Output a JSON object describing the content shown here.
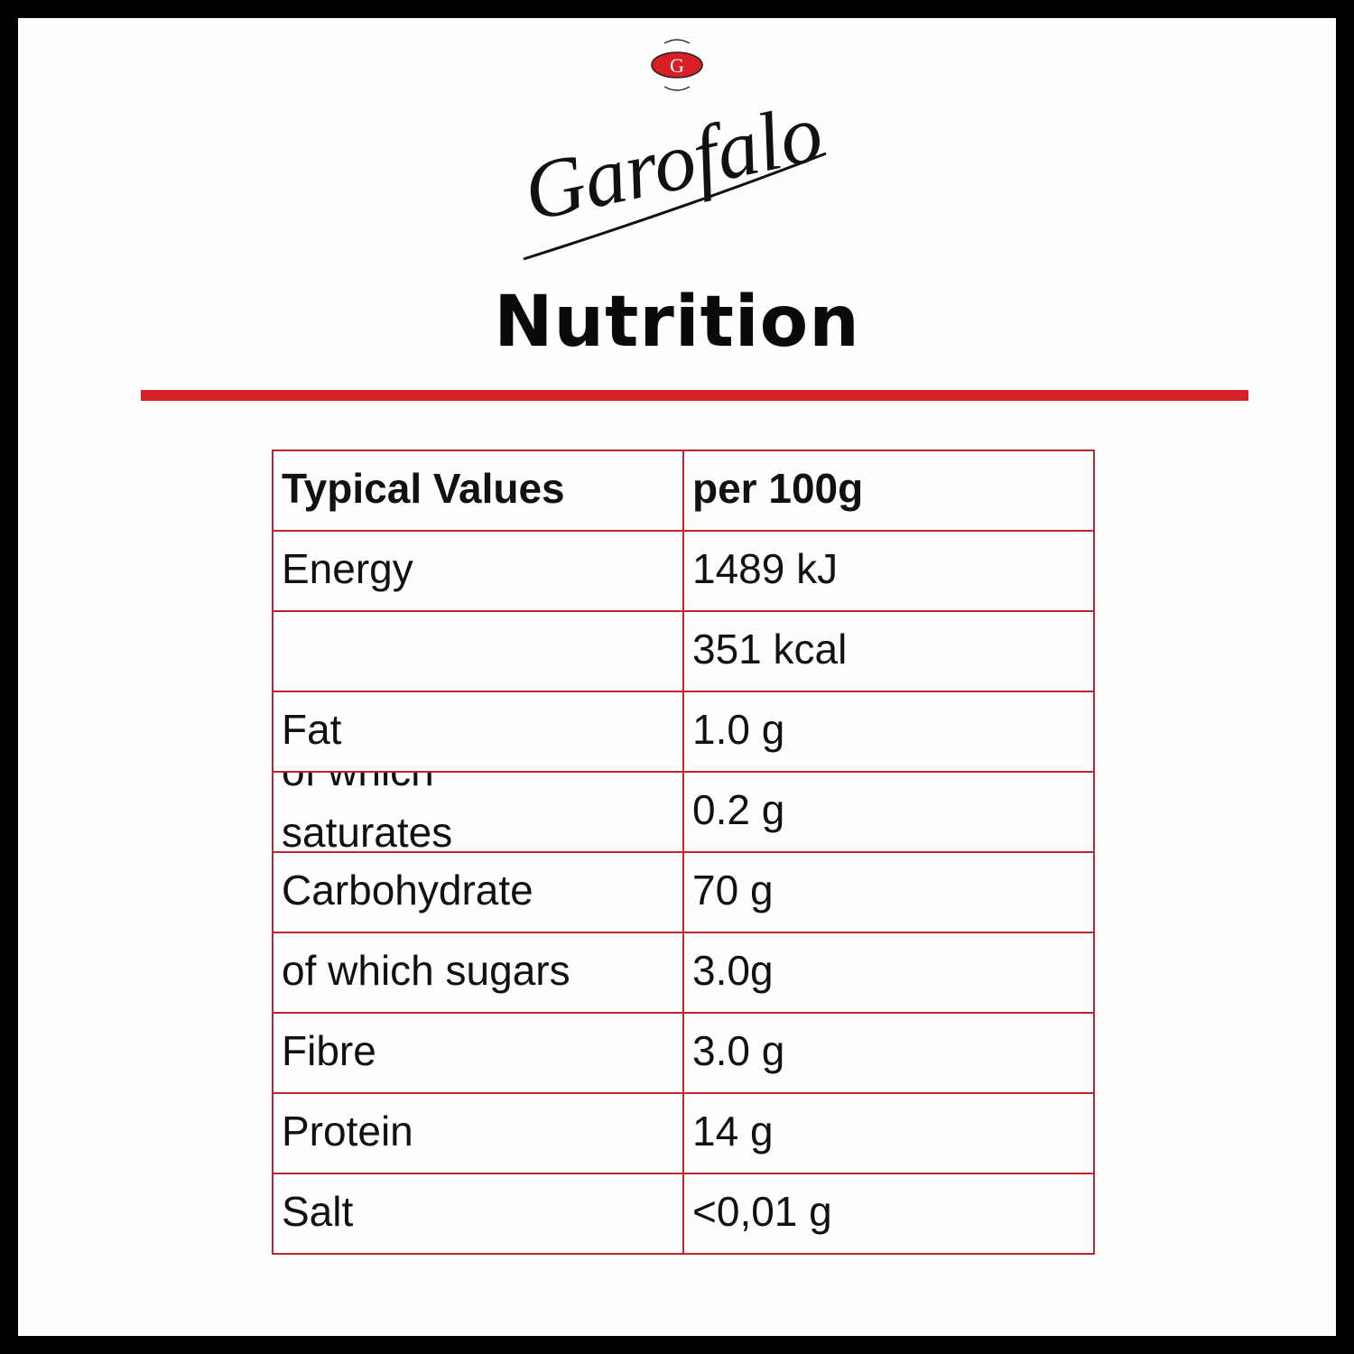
{
  "brand": {
    "name": "Garofalo",
    "emblem_letter": "G",
    "accent_color": "#d71f26"
  },
  "title": "Nutrition",
  "table": {
    "headers": [
      "Typical Values",
      "per 100g"
    ],
    "rows": [
      [
        "Energy",
        "1489 kJ"
      ],
      [
        "",
        "351 kcal"
      ],
      [
        "Fat",
        "1.0 g"
      ],
      [
        "of which saturates",
        "0.2 g"
      ],
      [
        "Carbohydrate",
        "70 g"
      ],
      [
        "of which sugars",
        "3.0g"
      ],
      [
        "Fibre",
        "3.0 g"
      ],
      [
        "Protein",
        "14 g"
      ],
      [
        "Salt",
        "<0,01 g"
      ]
    ]
  }
}
